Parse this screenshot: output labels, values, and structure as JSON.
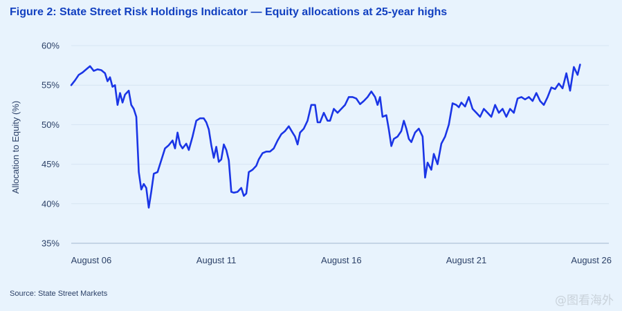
{
  "title": "Figure 2: State Street Risk Holdings Indicator — Equity allocations at 25-year highs",
  "source": "Source: State Street Markets",
  "watermark": "@图看海外",
  "colors": {
    "line": "#1a35e6",
    "title": "#1240c0",
    "grid": "#d6e4f2",
    "background": "#e8f3fd"
  },
  "chart_data": {
    "type": "line",
    "title": "Figure 2: State Street Risk Holdings Indicator — Equity allocations at 25-year highs",
    "xlabel": "",
    "ylabel": "Allocation to Equity (%)",
    "ylim": [
      35,
      60
    ],
    "yticks": [
      35,
      40,
      45,
      50,
      55,
      60
    ],
    "ytick_labels": [
      "35%",
      "40%",
      "45%",
      "50%",
      "55%",
      "60%"
    ],
    "xlim": [
      2005.7,
      2027.2
    ],
    "xticks": [
      2006.5,
      2011.5,
      2016.5,
      2021.5,
      2026.5
    ],
    "xtick_labels": [
      "August 06",
      "August 11",
      "August 16",
      "August 21",
      "August 26"
    ],
    "grid": "horizontal",
    "legend": "none",
    "series": [
      {
        "values": [
          [
            2005.7,
            55.0
          ],
          [
            2005.85,
            55.6
          ],
          [
            2006.0,
            56.3
          ],
          [
            2006.15,
            56.6
          ],
          [
            2006.3,
            57.0
          ],
          [
            2006.45,
            57.4
          ],
          [
            2006.6,
            56.8
          ],
          [
            2006.75,
            57.0
          ],
          [
            2006.9,
            56.9
          ],
          [
            2007.05,
            56.5
          ],
          [
            2007.15,
            55.5
          ],
          [
            2007.25,
            56.0
          ],
          [
            2007.35,
            54.8
          ],
          [
            2007.45,
            55.0
          ],
          [
            2007.55,
            52.5
          ],
          [
            2007.65,
            54.0
          ],
          [
            2007.75,
            52.8
          ],
          [
            2007.85,
            53.8
          ],
          [
            2008.0,
            54.3
          ],
          [
            2008.1,
            52.5
          ],
          [
            2008.2,
            52.0
          ],
          [
            2008.3,
            51.0
          ],
          [
            2008.4,
            44.0
          ],
          [
            2008.5,
            41.8
          ],
          [
            2008.6,
            42.5
          ],
          [
            2008.7,
            42.0
          ],
          [
            2008.8,
            39.5
          ],
          [
            2008.9,
            41.5
          ],
          [
            2009.0,
            43.8
          ],
          [
            2009.15,
            44.0
          ],
          [
            2009.3,
            45.5
          ],
          [
            2009.45,
            47.0
          ],
          [
            2009.6,
            47.4
          ],
          [
            2009.75,
            48.0
          ],
          [
            2009.85,
            47.0
          ],
          [
            2009.95,
            49.0
          ],
          [
            2010.05,
            47.5
          ],
          [
            2010.15,
            47.0
          ],
          [
            2010.3,
            47.6
          ],
          [
            2010.4,
            46.8
          ],
          [
            2010.55,
            48.5
          ],
          [
            2010.7,
            50.5
          ],
          [
            2010.85,
            50.8
          ],
          [
            2011.0,
            50.8
          ],
          [
            2011.1,
            50.3
          ],
          [
            2011.2,
            49.4
          ],
          [
            2011.3,
            47.4
          ],
          [
            2011.4,
            45.8
          ],
          [
            2011.5,
            47.2
          ],
          [
            2011.6,
            45.3
          ],
          [
            2011.7,
            45.6
          ],
          [
            2011.8,
            47.5
          ],
          [
            2011.9,
            46.8
          ],
          [
            2012.0,
            45.5
          ],
          [
            2012.1,
            41.5
          ],
          [
            2012.2,
            41.4
          ],
          [
            2012.35,
            41.5
          ],
          [
            2012.5,
            42.0
          ],
          [
            2012.6,
            41.0
          ],
          [
            2012.7,
            41.3
          ],
          [
            2012.8,
            44.0
          ],
          [
            2012.95,
            44.3
          ],
          [
            2013.1,
            44.8
          ],
          [
            2013.2,
            45.6
          ],
          [
            2013.35,
            46.4
          ],
          [
            2013.5,
            46.6
          ],
          [
            2013.65,
            46.6
          ],
          [
            2013.8,
            47.0
          ],
          [
            2013.95,
            48.0
          ],
          [
            2014.1,
            48.8
          ],
          [
            2014.25,
            49.2
          ],
          [
            2014.4,
            49.8
          ],
          [
            2014.55,
            49.0
          ],
          [
            2014.65,
            48.5
          ],
          [
            2014.75,
            47.5
          ],
          [
            2014.85,
            49.0
          ],
          [
            2015.0,
            49.5
          ],
          [
            2015.15,
            50.5
          ],
          [
            2015.3,
            52.5
          ],
          [
            2015.45,
            52.5
          ],
          [
            2015.55,
            50.3
          ],
          [
            2015.65,
            50.3
          ],
          [
            2015.8,
            51.5
          ],
          [
            2015.95,
            50.5
          ],
          [
            2016.05,
            50.5
          ],
          [
            2016.2,
            52.0
          ],
          [
            2016.35,
            51.5
          ],
          [
            2016.5,
            52.0
          ],
          [
            2016.65,
            52.5
          ],
          [
            2016.8,
            53.5
          ],
          [
            2016.95,
            53.5
          ],
          [
            2017.1,
            53.3
          ],
          [
            2017.25,
            52.6
          ],
          [
            2017.4,
            53.0
          ],
          [
            2017.55,
            53.5
          ],
          [
            2017.7,
            54.2
          ],
          [
            2017.85,
            53.5
          ],
          [
            2017.95,
            52.5
          ],
          [
            2018.05,
            53.5
          ],
          [
            2018.15,
            51.0
          ],
          [
            2018.3,
            51.2
          ],
          [
            2018.4,
            49.4
          ],
          [
            2018.5,
            47.3
          ],
          [
            2018.6,
            48.2
          ],
          [
            2018.75,
            48.5
          ],
          [
            2018.9,
            49.2
          ],
          [
            2019.0,
            50.5
          ],
          [
            2019.1,
            49.5
          ],
          [
            2019.2,
            48.2
          ],
          [
            2019.3,
            47.8
          ],
          [
            2019.45,
            49.0
          ],
          [
            2019.6,
            49.5
          ],
          [
            2019.75,
            48.5
          ],
          [
            2019.85,
            43.3
          ],
          [
            2019.95,
            45.2
          ],
          [
            2020.1,
            44.3
          ],
          [
            2020.2,
            46.3
          ],
          [
            2020.35,
            45.0
          ],
          [
            2020.5,
            47.6
          ],
          [
            2020.65,
            48.5
          ],
          [
            2020.8,
            50.0
          ],
          [
            2020.95,
            52.7
          ],
          [
            2021.1,
            52.5
          ],
          [
            2021.2,
            52.2
          ],
          [
            2021.3,
            52.8
          ],
          [
            2021.45,
            52.3
          ],
          [
            2021.6,
            53.5
          ],
          [
            2021.75,
            52.0
          ],
          [
            2021.9,
            51.5
          ],
          [
            2022.05,
            51.0
          ],
          [
            2022.2,
            52.0
          ],
          [
            2022.35,
            51.5
          ],
          [
            2022.5,
            51.0
          ],
          [
            2022.65,
            52.5
          ],
          [
            2022.8,
            51.5
          ],
          [
            2022.95,
            52.0
          ],
          [
            2023.1,
            51.0
          ],
          [
            2023.25,
            52.0
          ],
          [
            2023.4,
            51.5
          ],
          [
            2023.55,
            53.3
          ],
          [
            2023.7,
            53.5
          ],
          [
            2023.85,
            53.2
          ],
          [
            2024.0,
            53.5
          ],
          [
            2024.15,
            53.0
          ],
          [
            2024.3,
            54.0
          ],
          [
            2024.45,
            53.0
          ],
          [
            2024.6,
            52.5
          ],
          [
            2024.75,
            53.5
          ],
          [
            2024.9,
            54.7
          ],
          [
            2025.05,
            54.5
          ],
          [
            2025.2,
            55.2
          ],
          [
            2025.35,
            54.6
          ],
          [
            2025.5,
            56.5
          ],
          [
            2025.65,
            54.3
          ],
          [
            2025.8,
            57.3
          ],
          [
            2025.95,
            56.3
          ],
          [
            2026.05,
            57.6
          ]
        ]
      }
    ]
  }
}
